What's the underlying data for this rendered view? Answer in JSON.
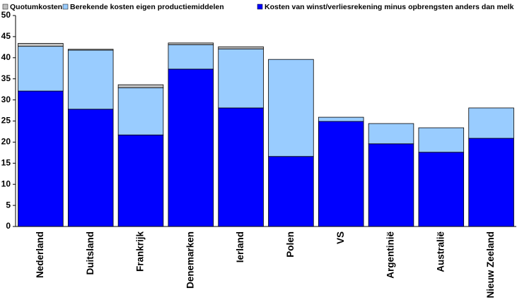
{
  "chart_data": {
    "type": "stacked_bar",
    "categories": [
      "Nederland",
      "Duitsland",
      "Frankrijk",
      "Denemarken",
      "Ierland",
      "Polen",
      "VS",
      "Argentinië",
      "Australië",
      "Nieuw Zeeland"
    ],
    "series": [
      {
        "name": "Quotumkosten",
        "color": "#c0c0c0",
        "values": [
          0.7,
          0.2,
          0.7,
          0.4,
          0.5,
          0,
          0,
          0,
          0,
          0
        ]
      },
      {
        "name": "Berekende kosten eigen productiemiddelen",
        "color": "#99ccff",
        "values": [
          10.6,
          14.0,
          11.2,
          5.8,
          14.0,
          23.0,
          1.0,
          4.8,
          5.8,
          7.2
        ]
      },
      {
        "name": "Kosten van winst/verliesrekening minus opbrengsten anders dan melk",
        "color": "#0000ff",
        "values": [
          32.1,
          27.8,
          21.7,
          37.3,
          28.1,
          16.6,
          24.9,
          19.6,
          17.6,
          20.9
        ]
      }
    ],
    "ylim": [
      0,
      50
    ],
    "yticks": [
      0,
      5,
      10,
      15,
      20,
      25,
      30,
      35,
      40,
      45,
      50
    ],
    "grid": false
  }
}
